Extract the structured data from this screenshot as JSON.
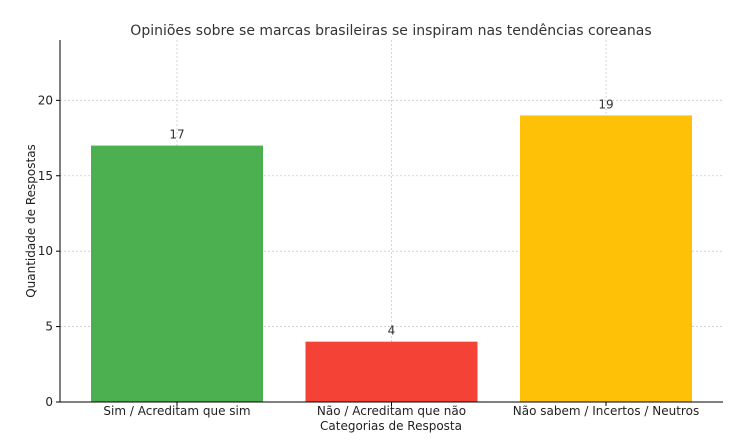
{
  "chart_data": {
    "type": "bar",
    "title": "Opiniões sobre se marcas brasileiras se inspiram nas tendências coreanas",
    "xlabel": "Categorias de Resposta",
    "ylabel": "Quantidade de Respostas",
    "categories": [
      "Sim / Acreditam que sim",
      "Não / Acreditam que não",
      "Não sabem / Incertos / Neutros"
    ],
    "values": [
      17,
      4,
      19
    ],
    "value_labels": [
      "17",
      "4",
      "19"
    ],
    "colors": [
      "#4CAF50",
      "#F44336",
      "#FFC107"
    ],
    "ylim": [
      0,
      24
    ],
    "yticks": [
      0,
      5,
      10,
      15,
      20
    ],
    "ytick_labels": [
      "0",
      "5",
      "10",
      "15",
      "20"
    ],
    "grid": true
  }
}
